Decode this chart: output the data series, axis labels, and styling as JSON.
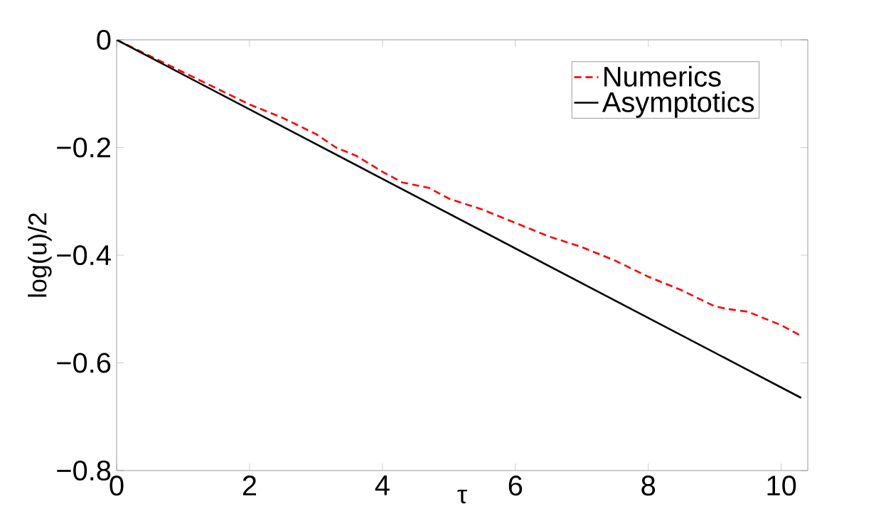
{
  "chart_data": {
    "type": "line",
    "xlabel": "τ",
    "ylabel": "log(u)/2",
    "xlim": [
      0,
      10.4
    ],
    "xticks": [
      0,
      2,
      4,
      6,
      8,
      10
    ],
    "ylim": [
      -0.8,
      0
    ],
    "yticks": [
      {
        "value": -0.8,
        "label": "−0.8"
      },
      {
        "value": -0.6,
        "label": "−0.6"
      },
      {
        "value": -0.4,
        "label": "−0.4"
      },
      {
        "value": -0.2,
        "label": "−0.2"
      },
      {
        "value": 0,
        "label": "0"
      }
    ],
    "legend": "top right",
    "grid": false,
    "marker": "none",
    "series": [
      {
        "name": "Numerics",
        "color": "#ff0000",
        "line_style": "dashed",
        "x": [
          0,
          0.5,
          1,
          1.5,
          2,
          2.5,
          3,
          3.3,
          3.6,
          4,
          4.3,
          4.7,
          5,
          5.5,
          6,
          6.5,
          7,
          7.5,
          8,
          8.5,
          9,
          9.2,
          9.5,
          10,
          10.3
        ],
        "values": [
          0,
          -0.03,
          -0.06,
          -0.09,
          -0.12,
          -0.145,
          -0.175,
          -0.2,
          -0.215,
          -0.245,
          -0.265,
          -0.275,
          -0.295,
          -0.315,
          -0.34,
          -0.365,
          -0.385,
          -0.41,
          -0.44,
          -0.465,
          -0.495,
          -0.5,
          -0.505,
          -0.53,
          -0.55
        ]
      },
      {
        "name": "Asymptotics",
        "color": "#000000",
        "line_style": "solid",
        "x": [
          0,
          10.3
        ],
        "values": [
          0,
          -0.665
        ]
      }
    ]
  }
}
